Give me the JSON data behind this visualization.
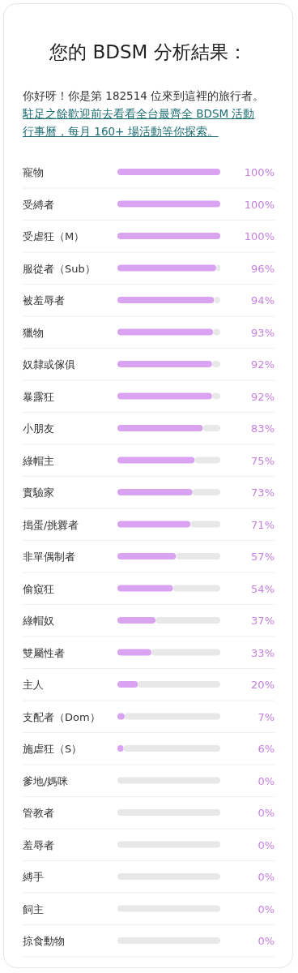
{
  "chart_data": {
    "type": "bar",
    "orientation": "horizontal",
    "stacked": true,
    "title": "您的 BDSM 分析結果：",
    "subtitle": "你好呀！你是第 182514 位來到這裡的旅行者。",
    "annotations": [
      "駐足之餘歡迎前去看看全台最齊全 BDSM 活動行事曆，每月 160+ 場活動等你探索。"
    ],
    "categories": [
      "寵物",
      "受縛者",
      "受虐狂（M）",
      "服從者（Sub）",
      "被羞辱者",
      "獵物",
      "奴隸或傢俱",
      "暴露狂",
      "小朋友",
      "綠帽主",
      "實驗家",
      "搗蛋/挑釁者",
      "非單偶制者",
      "偷窺狂",
      "綠帽奴",
      "雙屬性者",
      "主人",
      "支配者（Dom）",
      "施虐狂（S）",
      "爹地/媽咪",
      "管教者",
      "羞辱者",
      "縛手",
      "飼主",
      "掠食動物"
    ],
    "series": [
      {
        "color": "#d9a3f2",
        "values": [
          100,
          100,
          100,
          96,
          94,
          93,
          92,
          92,
          83,
          75,
          73,
          71,
          57,
          54,
          37,
          33,
          20,
          7,
          6,
          0,
          0,
          0,
          0,
          0,
          0
        ],
        "value_labels": [
          "100%",
          "100%",
          "100%",
          "96%",
          "94%",
          "93%",
          "92%",
          "92%",
          "83%",
          "75%",
          "73%",
          "71%",
          "57%",
          "54%",
          "37%",
          "33%",
          "20%",
          "7%",
          "6%",
          "0%",
          "0%",
          "0%",
          "0%",
          "0%",
          "0%"
        ]
      },
      {
        "color": "#e8e8e8",
        "values": [
          0,
          0,
          0,
          4,
          6,
          7,
          8,
          8,
          17,
          25,
          27,
          29,
          43,
          46,
          63,
          67,
          80,
          93,
          94,
          100,
          100,
          100,
          100,
          100,
          100
        ]
      }
    ],
    "xlim": [
      0,
      100
    ]
  }
}
